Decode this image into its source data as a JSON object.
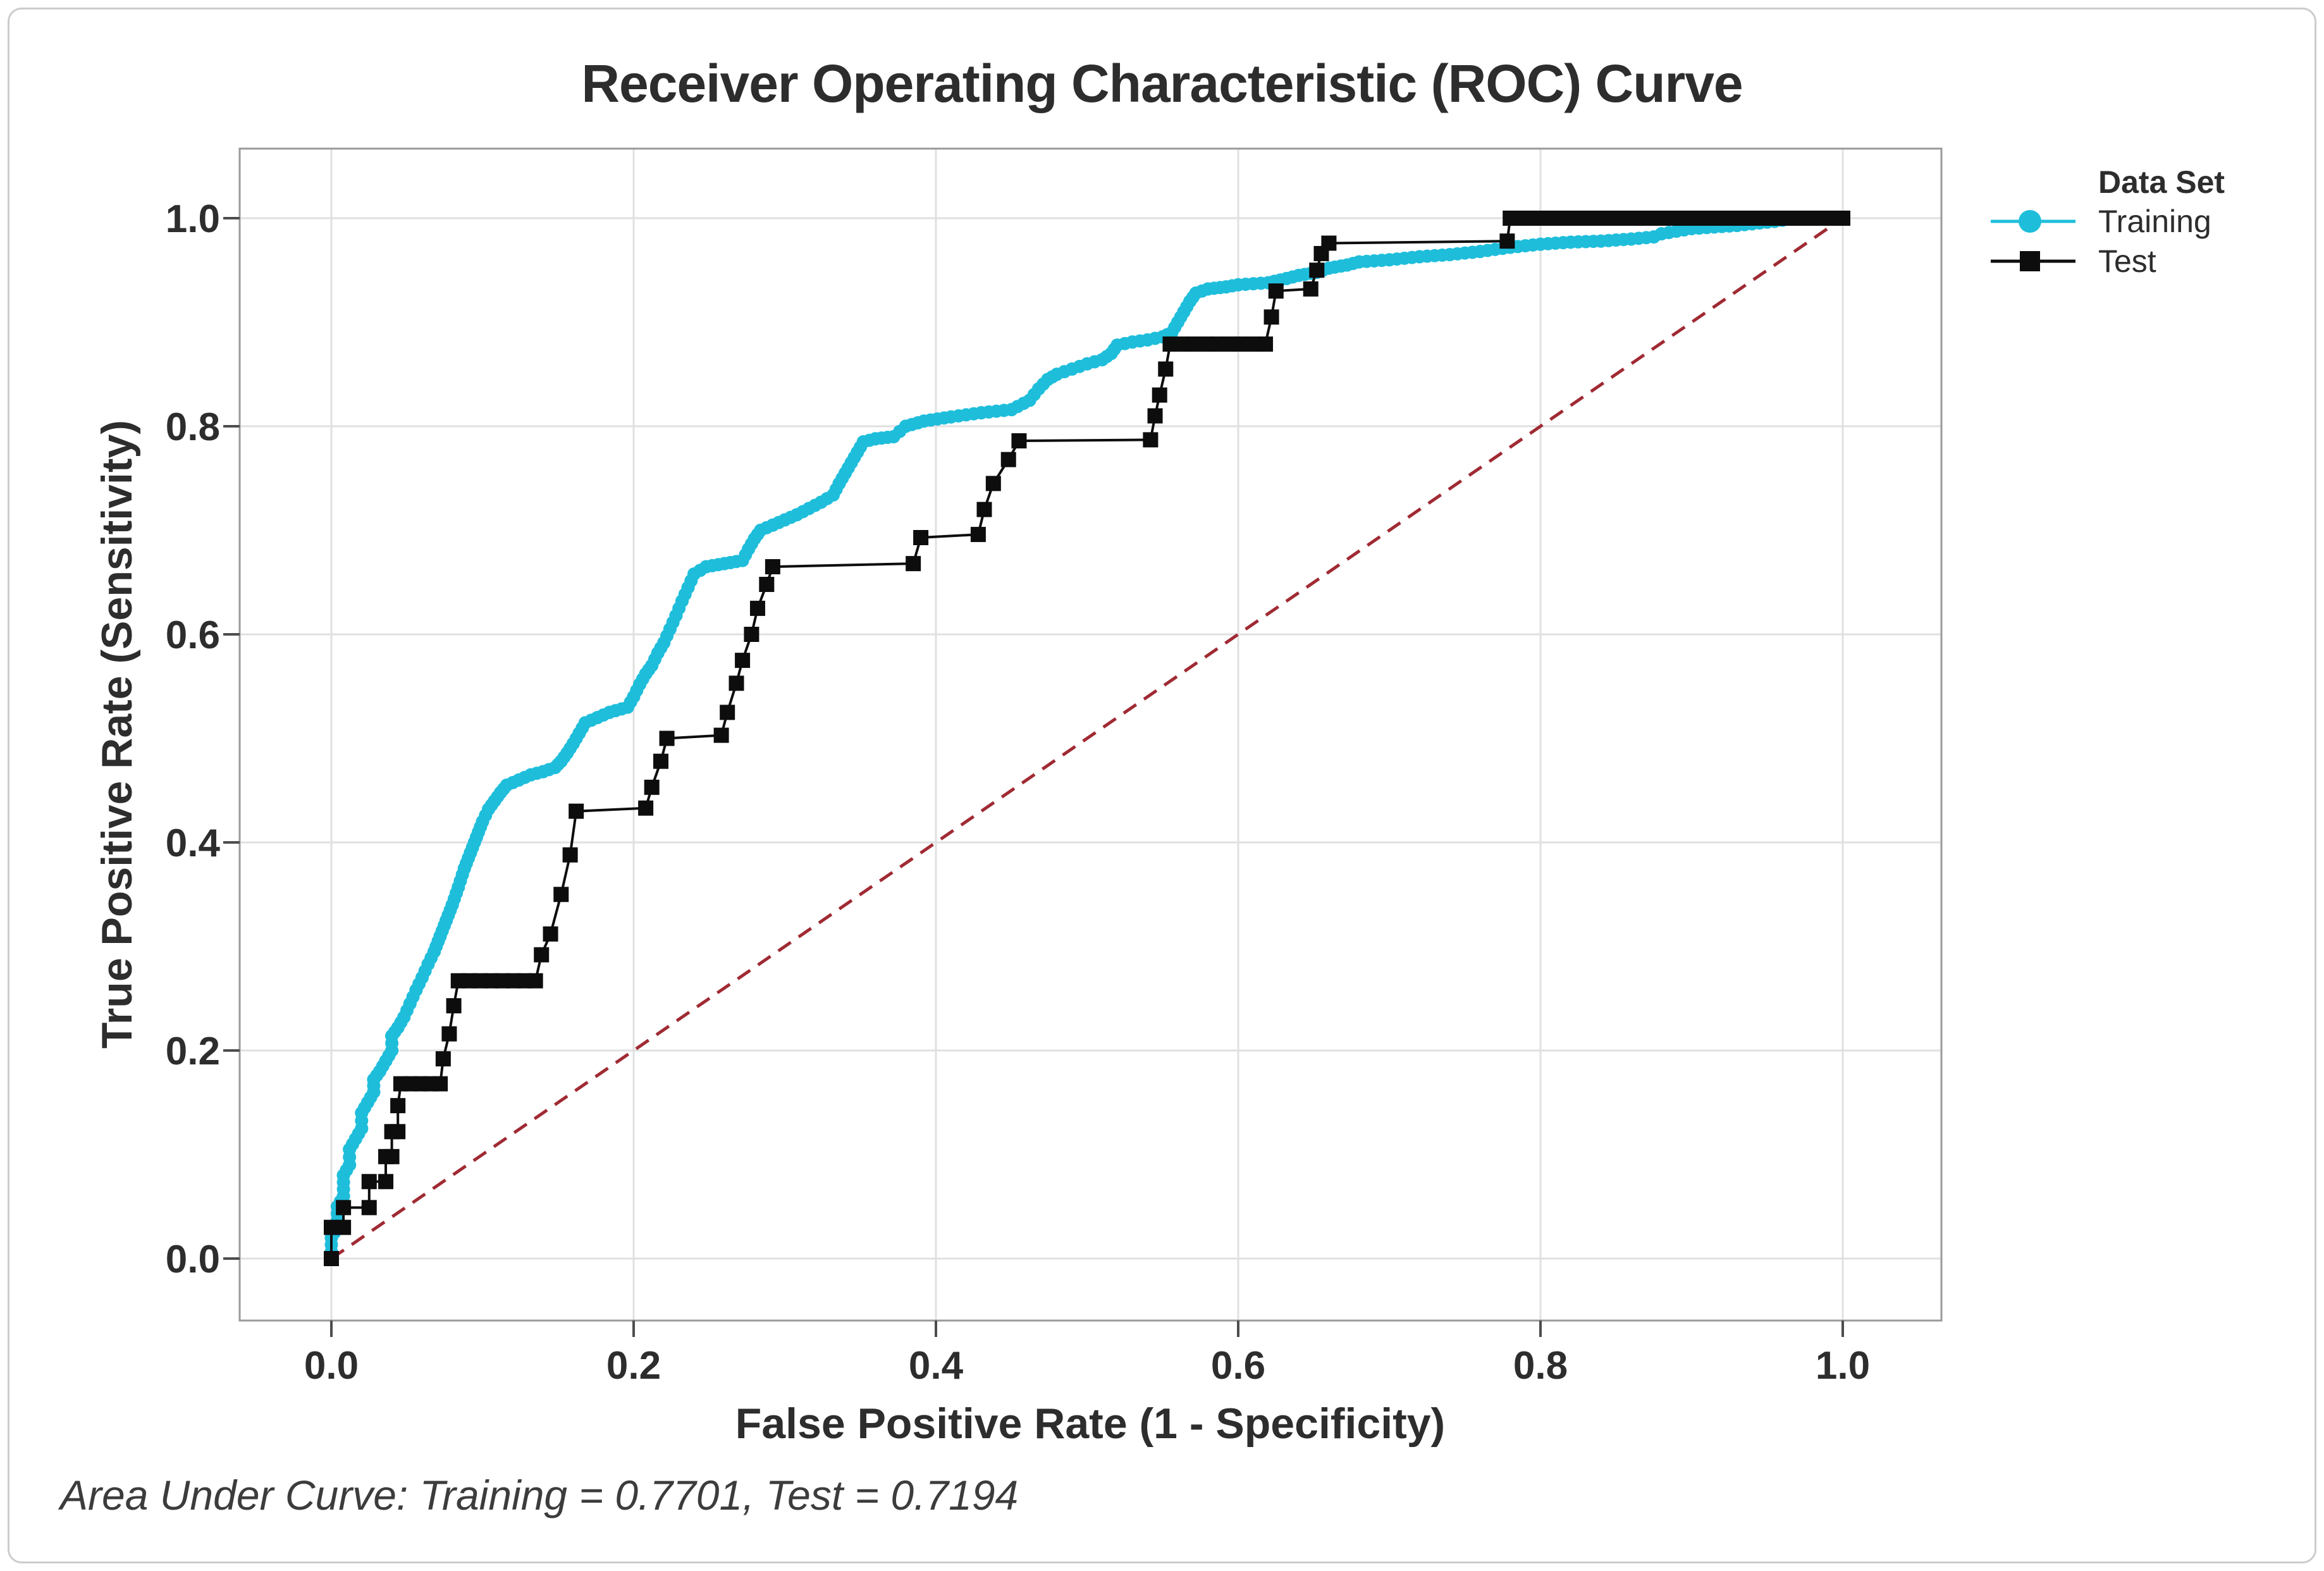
{
  "chart_data": {
    "type": "line",
    "subtype": "roc-step-curves",
    "title": "Receiver Operating Characteristic (ROC) Curve",
    "xlabel": "False Positive Rate (1 - Specificity)",
    "ylabel": "True Positive Rate (Sensitivity)",
    "footnote": "Area Under Curve: Training = 0.7701, Test = 0.7194",
    "auc": {
      "training": 0.7701,
      "test": 0.7194
    },
    "xlim": [
      0,
      1
    ],
    "ylim": [
      0,
      1
    ],
    "grid": true,
    "legend_position": "right",
    "legend_title": "Data Set",
    "x_ticks": {
      "labels": [
        "0.0",
        "0.2",
        "0.4",
        "0.6",
        "0.8",
        "1.0"
      ],
      "values": [
        0,
        0.2,
        0.4,
        0.6,
        0.8,
        1.0
      ]
    },
    "y_ticks": {
      "labels": [
        "0.0",
        "0.2",
        "0.4",
        "0.6",
        "0.8",
        "1.0"
      ],
      "values": [
        0,
        0.2,
        0.4,
        0.6,
        0.8,
        1.0
      ]
    },
    "reference_line": {
      "name": "chance-diagonal",
      "from": [
        0,
        0
      ],
      "to": [
        1,
        1
      ],
      "style": "dashed",
      "color": "#A02A33"
    },
    "style": {
      "grid_color": "#e0e0e0",
      "frame_color": "#9a9a9a",
      "tick_color": "#4d4d4d",
      "text_color": "#2d2d2d",
      "background": "#ffffff",
      "border_color": "#cccccc"
    },
    "series": [
      {
        "name": "Training",
        "color": "#1EBEDB",
        "marker": "circle",
        "points": [
          [
            0,
            0
          ],
          [
            0,
            0.02
          ],
          [
            0.004,
            0.03
          ],
          [
            0.004,
            0.05
          ],
          [
            0.008,
            0.06
          ],
          [
            0.008,
            0.08
          ],
          [
            0.012,
            0.09
          ],
          [
            0.012,
            0.105
          ],
          [
            0.016,
            0.115
          ],
          [
            0.02,
            0.125
          ],
          [
            0.02,
            0.14
          ],
          [
            0.024,
            0.15
          ],
          [
            0.028,
            0.16
          ],
          [
            0.028,
            0.172
          ],
          [
            0.032,
            0.18
          ],
          [
            0.036,
            0.19
          ],
          [
            0.04,
            0.2
          ],
          [
            0.04,
            0.214
          ],
          [
            0.044,
            0.222
          ],
          [
            0.048,
            0.232
          ],
          [
            0.052,
            0.245
          ],
          [
            0.056,
            0.258
          ],
          [
            0.06,
            0.27
          ],
          [
            0.064,
            0.283
          ],
          [
            0.068,
            0.295
          ],
          [
            0.072,
            0.31
          ],
          [
            0.076,
            0.325
          ],
          [
            0.08,
            0.34
          ],
          [
            0.084,
            0.357
          ],
          [
            0.088,
            0.375
          ],
          [
            0.092,
            0.39
          ],
          [
            0.096,
            0.405
          ],
          [
            0.1,
            0.42
          ],
          [
            0.104,
            0.432
          ],
          [
            0.108,
            0.44
          ],
          [
            0.112,
            0.448
          ],
          [
            0.116,
            0.455
          ],
          [
            0.124,
            0.46
          ],
          [
            0.132,
            0.465
          ],
          [
            0.14,
            0.468
          ],
          [
            0.148,
            0.472
          ],
          [
            0.152,
            0.478
          ],
          [
            0.156,
            0.486
          ],
          [
            0.16,
            0.495
          ],
          [
            0.164,
            0.505
          ],
          [
            0.168,
            0.515
          ],
          [
            0.176,
            0.52
          ],
          [
            0.184,
            0.525
          ],
          [
            0.196,
            0.53
          ],
          [
            0.2,
            0.54
          ],
          [
            0.204,
            0.552
          ],
          [
            0.208,
            0.562
          ],
          [
            0.212,
            0.57
          ],
          [
            0.216,
            0.582
          ],
          [
            0.22,
            0.592
          ],
          [
            0.224,
            0.605
          ],
          [
            0.228,
            0.618
          ],
          [
            0.232,
            0.632
          ],
          [
            0.236,
            0.645
          ],
          [
            0.24,
            0.658
          ],
          [
            0.248,
            0.665
          ],
          [
            0.26,
            0.668
          ],
          [
            0.272,
            0.671
          ],
          [
            0.276,
            0.682
          ],
          [
            0.28,
            0.692
          ],
          [
            0.284,
            0.7
          ],
          [
            0.292,
            0.705
          ],
          [
            0.3,
            0.71
          ],
          [
            0.308,
            0.715
          ],
          [
            0.316,
            0.721
          ],
          [
            0.324,
            0.727
          ],
          [
            0.332,
            0.734
          ],
          [
            0.336,
            0.745
          ],
          [
            0.34,
            0.755
          ],
          [
            0.344,
            0.765
          ],
          [
            0.348,
            0.775
          ],
          [
            0.352,
            0.785
          ],
          [
            0.36,
            0.788
          ],
          [
            0.372,
            0.79
          ],
          [
            0.38,
            0.8
          ],
          [
            0.392,
            0.805
          ],
          [
            0.41,
            0.809
          ],
          [
            0.43,
            0.813
          ],
          [
            0.45,
            0.816
          ],
          [
            0.462,
            0.825
          ],
          [
            0.468,
            0.836
          ],
          [
            0.474,
            0.845
          ],
          [
            0.48,
            0.85
          ],
          [
            0.49,
            0.855
          ],
          [
            0.5,
            0.86
          ],
          [
            0.51,
            0.864
          ],
          [
            0.516,
            0.87
          ],
          [
            0.52,
            0.878
          ],
          [
            0.53,
            0.881
          ],
          [
            0.54,
            0.883
          ],
          [
            0.55,
            0.886
          ],
          [
            0.556,
            0.89
          ],
          [
            0.56,
            0.9
          ],
          [
            0.564,
            0.91
          ],
          [
            0.568,
            0.92
          ],
          [
            0.572,
            0.928
          ],
          [
            0.58,
            0.932
          ],
          [
            0.592,
            0.934
          ],
          [
            0.6,
            0.936
          ],
          [
            0.62,
            0.938
          ],
          [
            0.632,
            0.942
          ],
          [
            0.64,
            0.945
          ],
          [
            0.652,
            0.948
          ],
          [
            0.66,
            0.952
          ],
          [
            0.672,
            0.955
          ],
          [
            0.68,
            0.958
          ],
          [
            0.7,
            0.96
          ],
          [
            0.72,
            0.963
          ],
          [
            0.74,
            0.965
          ],
          [
            0.76,
            0.968
          ],
          [
            0.78,
            0.972
          ],
          [
            0.8,
            0.975
          ],
          [
            0.82,
            0.977
          ],
          [
            0.84,
            0.978
          ],
          [
            0.86,
            0.98
          ],
          [
            0.875,
            0.982
          ],
          [
            0.88,
            0.985
          ],
          [
            0.9,
            0.99
          ],
          [
            0.93,
            0.993
          ],
          [
            0.955,
            0.997
          ],
          [
            0.97,
            1.0
          ],
          [
            1.0,
            1.0
          ]
        ]
      },
      {
        "name": "Test",
        "color": "#0d0d0d",
        "marker": "square",
        "points": [
          [
            0,
            0
          ],
          [
            0,
            0.03
          ],
          [
            0.008,
            0.03
          ],
          [
            0.008,
            0.049
          ],
          [
            0.025,
            0.049
          ],
          [
            0.025,
            0.074
          ],
          [
            0.036,
            0.074
          ],
          [
            0.036,
            0.098
          ],
          [
            0.04,
            0.098
          ],
          [
            0.04,
            0.122
          ],
          [
            0.044,
            0.122
          ],
          [
            0.044,
            0.147
          ],
          [
            0.046,
            0.168
          ],
          [
            0.072,
            0.168
          ],
          [
            0.074,
            0.192
          ],
          [
            0.078,
            0.216
          ],
          [
            0.081,
            0.243
          ],
          [
            0.084,
            0.267
          ],
          [
            0.135,
            0.267
          ],
          [
            0.139,
            0.292
          ],
          [
            0.145,
            0.312
          ],
          [
            0.152,
            0.35
          ],
          [
            0.158,
            0.388
          ],
          [
            0.162,
            0.43
          ],
          [
            0.208,
            0.433
          ],
          [
            0.212,
            0.453
          ],
          [
            0.218,
            0.478
          ],
          [
            0.222,
            0.5
          ],
          [
            0.258,
            0.503
          ],
          [
            0.262,
            0.525
          ],
          [
            0.268,
            0.553
          ],
          [
            0.272,
            0.575
          ],
          [
            0.278,
            0.6
          ],
          [
            0.282,
            0.625
          ],
          [
            0.288,
            0.648
          ],
          [
            0.292,
            0.665
          ],
          [
            0.385,
            0.668
          ],
          [
            0.39,
            0.693
          ],
          [
            0.428,
            0.696
          ],
          [
            0.432,
            0.72
          ],
          [
            0.438,
            0.745
          ],
          [
            0.448,
            0.768
          ],
          [
            0.455,
            0.786
          ],
          [
            0.542,
            0.787
          ],
          [
            0.545,
            0.81
          ],
          [
            0.548,
            0.83
          ],
          [
            0.552,
            0.855
          ],
          [
            0.555,
            0.879
          ],
          [
            0.618,
            0.879
          ],
          [
            0.622,
            0.905
          ],
          [
            0.625,
            0.93
          ],
          [
            0.648,
            0.932
          ],
          [
            0.652,
            0.95
          ],
          [
            0.655,
            0.966
          ],
          [
            0.66,
            0.976
          ],
          [
            0.778,
            0.978
          ],
          [
            0.78,
            1.0
          ],
          [
            1.0,
            1.0
          ]
        ]
      }
    ]
  },
  "legend": {
    "title": "Data Set",
    "items": [
      {
        "label": "Training",
        "color": "#1EBEDB",
        "marker": "circle"
      },
      {
        "label": "Test",
        "color": "#0d0d0d",
        "marker": "square"
      }
    ]
  }
}
